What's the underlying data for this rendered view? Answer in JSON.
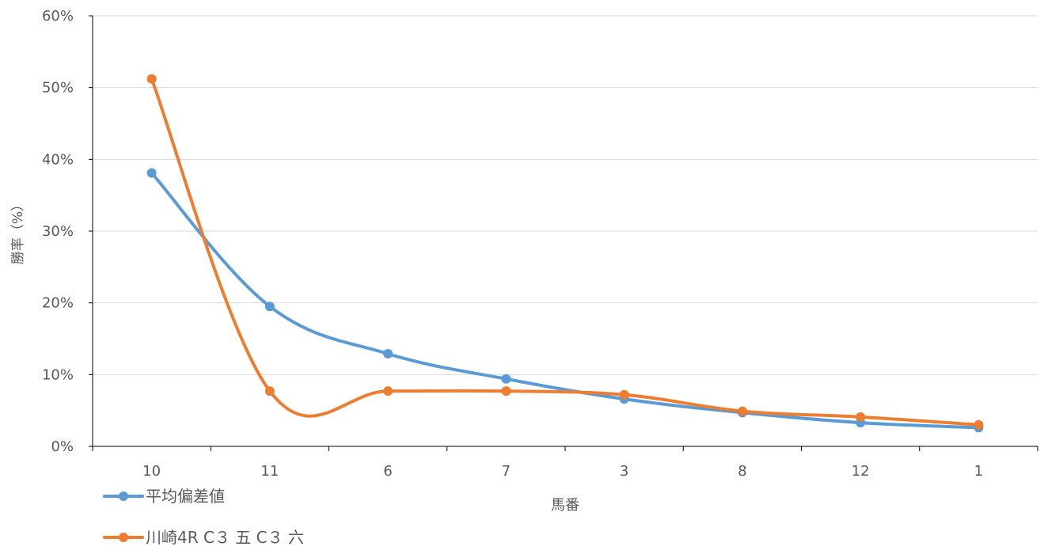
{
  "chart_data": {
    "type": "line",
    "title": "",
    "xlabel": "馬番",
    "ylabel": "勝率（%）",
    "categories": [
      "10",
      "11",
      "6",
      "7",
      "3",
      "8",
      "12",
      "1"
    ],
    "ylim": [
      0,
      60
    ],
    "y_ticks": [
      0,
      10,
      20,
      30,
      40,
      50,
      60
    ],
    "y_tick_labels": [
      "0%",
      "10%",
      "20%",
      "30%",
      "40%",
      "50%",
      "60%"
    ],
    "grid": true,
    "legend_position": "bottom-left",
    "series": [
      {
        "name": "平均偏差値",
        "color": "#5b9bd5",
        "values": [
          38.1,
          19.5,
          12.9,
          9.4,
          6.6,
          4.7,
          3.3,
          2.6
        ]
      },
      {
        "name": "川崎4R C３ 五 C３ 六",
        "color": "#ed7d31",
        "values": [
          51.2,
          7.7,
          7.7,
          7.7,
          7.2,
          4.9,
          4.1,
          3.0
        ]
      }
    ]
  }
}
